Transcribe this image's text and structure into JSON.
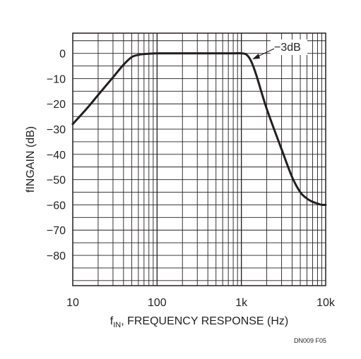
{
  "chart_data": {
    "type": "line",
    "title": "",
    "xlabel": "f",
    "xlabel_sub": "IN",
    "xlabel_rest": ", FREQUENCY RESPONSE (Hz)",
    "ylabel": "fINGAIN (dB)",
    "x_scale": "log",
    "xlim": [
      10,
      10000
    ],
    "ylim": [
      -92,
      8
    ],
    "grid": true,
    "x_ticks": [
      {
        "value": 10,
        "label": "10"
      },
      {
        "value": 100,
        "label": "100"
      },
      {
        "value": 1000,
        "label": "1k"
      },
      {
        "value": 10000,
        "label": "10k"
      }
    ],
    "y_ticks": [
      0,
      -10,
      -20,
      -30,
      -40,
      -50,
      -60,
      -70,
      -80
    ],
    "y_tick_labels": [
      "0",
      "−10",
      "−20",
      "−30",
      "−40",
      "−50",
      "−60",
      "−70",
      "−80"
    ],
    "series": [
      {
        "x": [
          10,
          15,
          20,
          30,
          40,
          50,
          60,
          70,
          100,
          200,
          300,
          500,
          800,
          1000,
          1150,
          1300,
          1500,
          2000,
          3000,
          4000,
          5000,
          6000,
          7000,
          8000,
          9000,
          10000
        ],
        "y": [
          -28,
          -21.5,
          -16.5,
          -9.5,
          -4.5,
          -1.5,
          -0.6,
          -0.3,
          0,
          0,
          0,
          0,
          0,
          0,
          -0.5,
          -3,
          -8.5,
          -22,
          -38,
          -49,
          -55,
          -57.5,
          -58.8,
          -59.5,
          -60,
          -60
        ]
      }
    ],
    "annotations": [
      {
        "text": "−3dB",
        "x": 1250,
        "y": -3
      }
    ]
  },
  "footnote": "DN009 F05",
  "colors": {
    "ink": "#231f20",
    "background": "#ffffff"
  }
}
